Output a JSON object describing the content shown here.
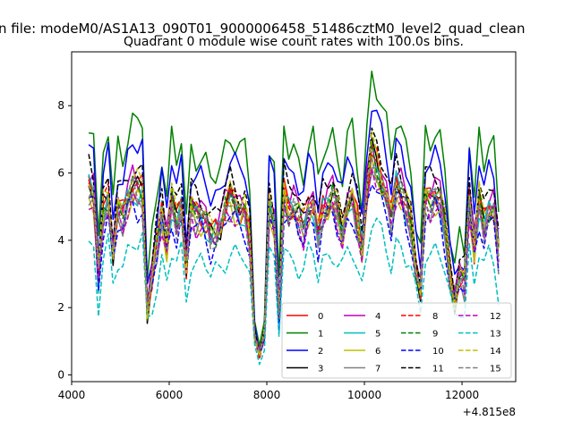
{
  "chart_data": {
    "type": "line",
    "suptitle": "n file: modeM0/AS1A13_090T01_9000006458_51486cztM0_level2_quad_clean",
    "title": "Quadrant 0 module wise count rates with 100.0s bins.",
    "xlabel": "",
    "ylabel": "",
    "x_offset_label": "+4.815e8",
    "xlim": [
      4000,
      13100
    ],
    "ylim": [
      -0.2,
      9.6
    ],
    "xticks": [
      4000,
      6000,
      8000,
      10000,
      12000
    ],
    "xtick_labels": [
      "4000",
      "6000",
      "8000",
      "10000",
      "12000"
    ],
    "yticks": [
      0,
      2,
      4,
      6,
      8
    ],
    "ytick_labels": [
      "0",
      "2",
      "4",
      "6",
      "8"
    ],
    "grid": false,
    "legend_position": "lower-right",
    "x": [
      4350,
      4450,
      4550,
      4650,
      4750,
      4850,
      4950,
      5050,
      5150,
      5250,
      5350,
      5450,
      5550,
      5650,
      5750,
      5850,
      5950,
      6050,
      6150,
      6250,
      6350,
      6450,
      6550,
      6650,
      6750,
      6850,
      6950,
      7050,
      7150,
      7250,
      7350,
      7450,
      7550,
      7650,
      7750,
      7850,
      7950,
      8050,
      8150,
      8250,
      8350,
      8450,
      8550,
      8650,
      8750,
      8850,
      8950,
      9050,
      9150,
      9250,
      9350,
      9450,
      9550,
      9650,
      9750,
      9850,
      9950,
      10050,
      10150,
      10250,
      10350,
      10450,
      10550,
      10650,
      10750,
      10850,
      10950,
      11050,
      11150,
      11250,
      11350,
      11450,
      11550,
      11650,
      11750,
      11850,
      11950,
      12050,
      12150,
      12250,
      12350,
      12450,
      12550,
      12650,
      12750
    ],
    "base": [
      5.6,
      5.4,
      2.9,
      4.9,
      5.3,
      3.7,
      5.0,
      4.8,
      5.3,
      5.6,
      5.5,
      5.5,
      2.0,
      3.0,
      4.0,
      4.9,
      3.9,
      5.2,
      4.6,
      5.1,
      3.3,
      5.0,
      4.8,
      4.8,
      4.6,
      4.2,
      4.3,
      4.5,
      5.0,
      5.3,
      5.1,
      4.9,
      4.9,
      4.1,
      1.2,
      0.6,
      1.2,
      5.1,
      4.6,
      1.8,
      5.4,
      4.9,
      5.0,
      4.7,
      4.4,
      5.0,
      5.1,
      4.2,
      4.9,
      5.1,
      5.3,
      4.8,
      4.3,
      5.1,
      5.3,
      4.6,
      3.8,
      5.4,
      6.6,
      6.2,
      5.8,
      5.4,
      4.7,
      5.7,
      5.5,
      5.0,
      4.5,
      3.2,
      2.6,
      5.3,
      5.2,
      5.4,
      5.2,
      4.4,
      3.0,
      2.3,
      3.0,
      2.8,
      5.3,
      3.8,
      5.2,
      4.5,
      5.0,
      5.0,
      3.6
    ],
    "series": [
      {
        "name": "0",
        "color": "#ff0000",
        "style": "solid",
        "scale": 1.0,
        "seed": 1
      },
      {
        "name": "1",
        "color": "#008000",
        "style": "solid",
        "scale": 1.36,
        "seed": 2
      },
      {
        "name": "2",
        "color": "#0000ff",
        "style": "solid",
        "scale": 1.22,
        "seed": 3
      },
      {
        "name": "3",
        "color": "#000000",
        "style": "solid",
        "scale": 1.0,
        "seed": 4
      },
      {
        "name": "4",
        "color": "#bf00bf",
        "style": "solid",
        "scale": 1.04,
        "seed": 5
      },
      {
        "name": "5",
        "color": "#00bfbf",
        "style": "solid",
        "scale": 0.98,
        "seed": 6
      },
      {
        "name": "6",
        "color": "#bfbf00",
        "style": "solid",
        "scale": 0.96,
        "seed": 7
      },
      {
        "name": "7",
        "color": "#808080",
        "style": "solid",
        "scale": 0.95,
        "seed": 8
      },
      {
        "name": "8",
        "color": "#ff0000",
        "style": "dashed",
        "scale": 1.01,
        "seed": 9
      },
      {
        "name": "9",
        "color": "#008000",
        "style": "dashed",
        "scale": 0.99,
        "seed": 10
      },
      {
        "name": "10",
        "color": "#0000ff",
        "style": "dashed",
        "scale": 0.9,
        "seed": 11
      },
      {
        "name": "11",
        "color": "#000000",
        "style": "dashed",
        "scale": 1.11,
        "seed": 12
      },
      {
        "name": "12",
        "color": "#bf00bf",
        "style": "dashed",
        "scale": 0.94,
        "seed": 13
      },
      {
        "name": "13",
        "color": "#00bfbf",
        "style": "dashed",
        "scale": 0.7,
        "seed": 14
      },
      {
        "name": "14",
        "color": "#bfbf00",
        "style": "dashed",
        "scale": 1.03,
        "seed": 15
      },
      {
        "name": "15",
        "color": "#808080",
        "style": "dashed",
        "scale": 0.97,
        "seed": 16
      }
    ]
  }
}
